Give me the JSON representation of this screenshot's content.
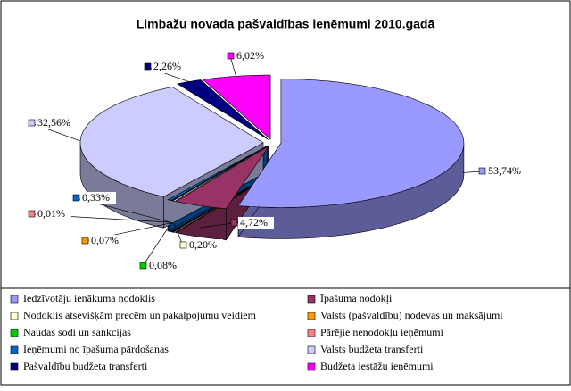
{
  "chart_data": {
    "type": "pie",
    "title": "Limbažu novada pašvaldības ieņēmumi 2010.gadā",
    "categories": [
      "Iedzīvotāju ienākuma nodoklis",
      "Īpašuma nodokļi",
      "Nodoklis atsevišķām precēm un pakalpojumu veidiem",
      "Valsts (pašvaldību) nodevas un maksājumi",
      "Naudas sodi un sankcijas",
      "Pārējie nenodokļu ieņēmumi",
      "Ieņēmumi no īpašuma pārdošanas",
      "Valsts budžeta transferti",
      "Pašvaldību budžeta transferti",
      "Budžeta iestāžu ieņēmumi"
    ],
    "values": [
      53.74,
      4.72,
      0.2,
      0.07,
      0.08,
      0.01,
      0.33,
      32.56,
      2.26,
      6.02
    ],
    "value_labels": [
      "53,74%",
      "4,72%",
      "0,20%",
      "0,07%",
      "0,08%",
      "0,01%",
      "0,33%",
      "32,56%",
      "2,26%",
      "6,02%"
    ],
    "colors": [
      "#9999ff",
      "#993366",
      "#ffffcc",
      "#ff9900",
      "#00cc00",
      "#ff8080",
      "#0066cc",
      "#ccccff",
      "#000080",
      "#ff00ff"
    ]
  }
}
